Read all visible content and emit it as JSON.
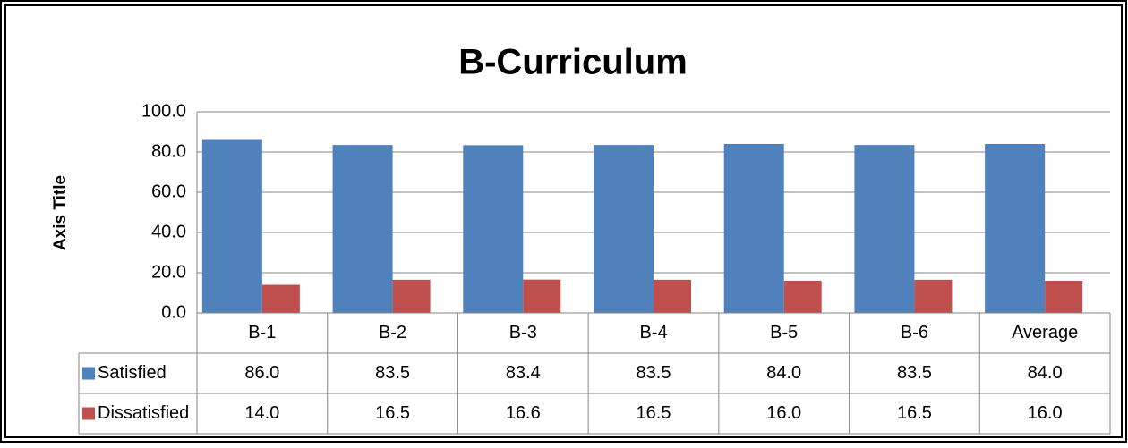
{
  "chart_data": {
    "type": "bar",
    "title": "B-Curriculum",
    "y_axis_label": "Axis Title",
    "categories": [
      "B-1",
      "B-2",
      "B-3",
      "B-4",
      "B-5",
      "B-6",
      "Average"
    ],
    "series": [
      {
        "name": "Satisfied",
        "color": "#4f81bd",
        "values": [
          86.0,
          83.5,
          83.4,
          83.5,
          84.0,
          83.5,
          84.0
        ],
        "value_labels": [
          "86.0",
          "83.5",
          "83.4",
          "83.5",
          "84.0",
          "83.5",
          "84.0"
        ]
      },
      {
        "name": "Dissatisfied",
        "color": "#c0504d",
        "values": [
          14.0,
          16.5,
          16.6,
          16.5,
          16.0,
          16.5,
          16.0
        ],
        "value_labels": [
          "14.0",
          "16.5",
          "16.6",
          "16.5",
          "16.0",
          "16.5",
          "16.0"
        ]
      }
    ],
    "ylim": [
      0,
      100
    ],
    "yticks": [
      {
        "value": 0,
        "label": "0.0"
      },
      {
        "value": 20,
        "label": "20.0"
      },
      {
        "value": 40,
        "label": "40.0"
      },
      {
        "value": 60,
        "label": "60.0"
      },
      {
        "value": 80,
        "label": "80.0"
      },
      {
        "value": 100,
        "label": "100.0"
      }
    ],
    "grid": true
  }
}
